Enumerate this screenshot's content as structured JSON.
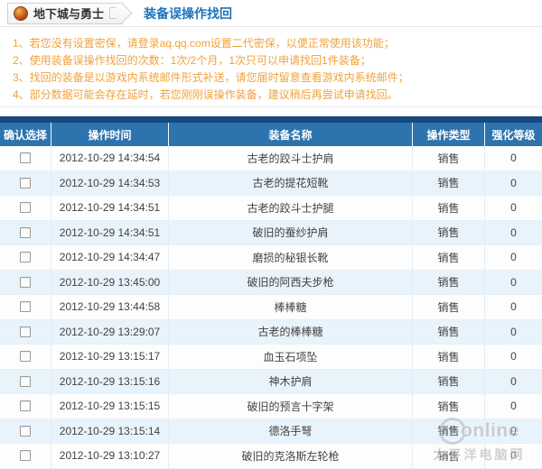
{
  "breadcrumb": {
    "game_label": "地下城与勇士",
    "dropdown_glyph": "▾",
    "page_title": "装备误操作找回"
  },
  "notices": [
    "1、若您没有设置密保，请登录aq.qq.com设置二代密保，以便正常使用该功能；",
    "2、使用装备误操作找回的次数：1次/2个月，1次只可以申请找回1件装备；",
    "3、找回的装备是以游戏内系统邮件形式补送，请您届时留意查看游戏内系统邮件；",
    "4、部分数据可能会存在延时，若您刚刚误操作装备，建议稍后再尝试申请找回。"
  ],
  "table": {
    "headers": [
      "确认选择",
      "操作时间",
      "装备名称",
      "操作类型",
      "强化等级"
    ],
    "rows": [
      {
        "time": "2012-10-29 14:34:54",
        "name": "古老的跤斗士护肩",
        "type": "销售",
        "level": "0"
      },
      {
        "time": "2012-10-29 14:34:53",
        "name": "古老的提花短靴",
        "type": "销售",
        "level": "0"
      },
      {
        "time": "2012-10-29 14:34:51",
        "name": "古老的跤斗士护腿",
        "type": "销售",
        "level": "0"
      },
      {
        "time": "2012-10-29 14:34:51",
        "name": "破旧的蚕纱护肩",
        "type": "销售",
        "level": "0"
      },
      {
        "time": "2012-10-29 14:34:47",
        "name": "磨损的秘银长靴",
        "type": "销售",
        "level": "0"
      },
      {
        "time": "2012-10-29 13:45:00",
        "name": "破旧的阿西夫步枪",
        "type": "销售",
        "level": "0"
      },
      {
        "time": "2012-10-29 13:44:58",
        "name": "棒棒糖",
        "type": "销售",
        "level": "0"
      },
      {
        "time": "2012-10-29 13:29:07",
        "name": "古老的棒棒糖",
        "type": "销售",
        "level": "0"
      },
      {
        "time": "2012-10-29 13:15:17",
        "name": "血玉石项坠",
        "type": "销售",
        "level": "0"
      },
      {
        "time": "2012-10-29 13:15:16",
        "name": "神木护肩",
        "type": "销售",
        "level": "0"
      },
      {
        "time": "2012-10-29 13:15:15",
        "name": "破旧的预言十字架",
        "type": "销售",
        "level": "0"
      },
      {
        "time": "2012-10-29 13:15:14",
        "name": "德洛手弩",
        "type": "销售",
        "level": "0"
      },
      {
        "time": "2012-10-29 13:10:27",
        "name": "破旧的克洛斯左轮枪",
        "type": "销售",
        "level": "0"
      }
    ]
  },
  "watermark": {
    "line1": "online",
    "line2": "太平洋电脑网"
  },
  "colors": {
    "title_blue": "#1d73b9",
    "notice_orange": "#f0a23c",
    "table_topbar_navy": "#17487d",
    "header_blue": "#2d73ae",
    "alt_row_blue": "#e9f3fb"
  }
}
